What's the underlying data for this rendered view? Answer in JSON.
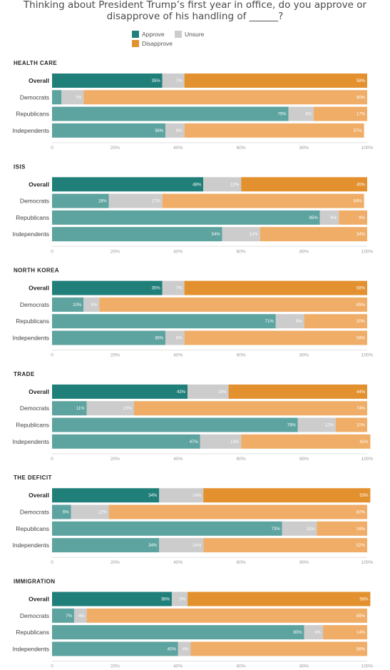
{
  "title": "Thinking about President Trump’s first year in office, do you approve or disapprove of his handling of ______?",
  "legend": [
    {
      "label": "Approve",
      "color": "#217f7a"
    },
    {
      "label": "Unsure",
      "color": "#cccccc"
    },
    {
      "label": "Disapprove",
      "color": "#e3912f"
    }
  ],
  "colors": {
    "approve_overall": "#217f7a",
    "approve_group": "#5da39f",
    "unsure": "#cccccc",
    "disapprove_overall": "#e3912f",
    "disapprove_group": "#efad67"
  },
  "chart_data": {
    "type": "bar",
    "orientation": "horizontal-stacked",
    "xlim": [
      0,
      100
    ],
    "x_ticks": [
      "0",
      "20%",
      "40%",
      "60%",
      "80%",
      "100%"
    ],
    "series_names": [
      "Approve",
      "Unsure",
      "Disapprove"
    ],
    "panels": [
      {
        "title": "HEALTH CARE",
        "rows": [
          {
            "group": "Overall",
            "approve": 35,
            "unsure": 7,
            "disapprove": 58
          },
          {
            "group": "Democrats",
            "approve": 3,
            "unsure": 7,
            "disapprove": 90
          },
          {
            "group": "Republicans",
            "approve": 75,
            "unsure": 8,
            "disapprove": 17
          },
          {
            "group": "Independents",
            "approve": 36,
            "unsure": 6,
            "disapprove": 57
          }
        ]
      },
      {
        "title": "ISIS",
        "rows": [
          {
            "group": "Overall",
            "approve": 48,
            "unsure": 12,
            "disapprove": 40
          },
          {
            "group": "Democrats",
            "approve": 18,
            "unsure": 17,
            "disapprove": 64
          },
          {
            "group": "Republicans",
            "approve": 85,
            "unsure": 6,
            "disapprove": 9
          },
          {
            "group": "Independents",
            "approve": 54,
            "unsure": 12,
            "disapprove": 34
          }
        ]
      },
      {
        "title": "NORTH KOREA",
        "rows": [
          {
            "group": "Overall",
            "approve": 35,
            "unsure": 7,
            "disapprove": 58
          },
          {
            "group": "Democrats",
            "approve": 10,
            "unsure": 5,
            "disapprove": 85
          },
          {
            "group": "Republicans",
            "approve": 71,
            "unsure": 9,
            "disapprove": 20
          },
          {
            "group": "Independents",
            "approve": 36,
            "unsure": 6,
            "disapprove": 58
          }
        ]
      },
      {
        "title": "TRADE",
        "rows": [
          {
            "group": "Overall",
            "approve": 43,
            "unsure": 13,
            "disapprove": 44
          },
          {
            "group": "Democrats",
            "approve": 11,
            "unsure": 15,
            "disapprove": 74
          },
          {
            "group": "Republicans",
            "approve": 78,
            "unsure": 12,
            "disapprove": 10
          },
          {
            "group": "Independents",
            "approve": 47,
            "unsure": 13,
            "disapprove": 41
          }
        ]
      },
      {
        "title": "THE DEFICIT",
        "rows": [
          {
            "group": "Overall",
            "approve": 34,
            "unsure": 14,
            "disapprove": 53
          },
          {
            "group": "Democrats",
            "approve": 6,
            "unsure": 12,
            "disapprove": 82
          },
          {
            "group": "Republicans",
            "approve": 73,
            "unsure": 11,
            "disapprove": 16
          },
          {
            "group": "Independents",
            "approve": 34,
            "unsure": 14,
            "disapprove": 52
          }
        ]
      },
      {
        "title": "IMMIGRATION",
        "rows": [
          {
            "group": "Overall",
            "approve": 38,
            "unsure": 5,
            "disapprove": 58
          },
          {
            "group": "Democrats",
            "approve": 7,
            "unsure": 4,
            "disapprove": 89
          },
          {
            "group": "Republicans",
            "approve": 80,
            "unsure": 6,
            "disapprove": 14
          },
          {
            "group": "Independents",
            "approve": 40,
            "unsure": 4,
            "disapprove": 56
          }
        ]
      }
    ]
  }
}
